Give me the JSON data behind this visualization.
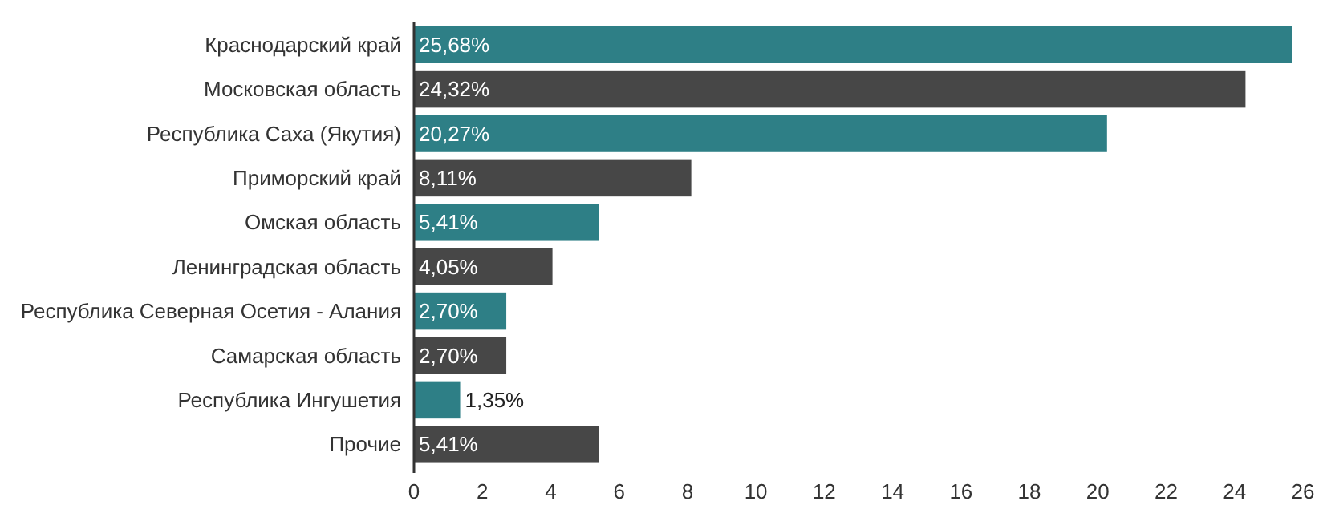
{
  "chart_data": {
    "type": "bar",
    "orientation": "horizontal",
    "categories": [
      "Краснодарский край",
      "Московская область",
      "Республика Саха (Якутия)",
      "Приморский край",
      "Омская область",
      "Ленинградская область",
      "Республика Северная Осетия - Алания",
      "Самарская область",
      "Республика Ингушетия",
      "Прочие"
    ],
    "values": [
      25.68,
      24.32,
      20.27,
      8.11,
      5.41,
      4.05,
      2.7,
      2.7,
      1.35,
      5.41
    ],
    "value_labels": [
      "25,68%",
      "24,32%",
      "20,27%",
      "8,11%",
      "5,41%",
      "4,05%",
      "2,70%",
      "2,70%",
      "1,35%",
      "5,41%"
    ],
    "colors": [
      "#2e7f86",
      "#474747",
      "#2e7f86",
      "#474747",
      "#2e7f86",
      "#474747",
      "#2e7f86",
      "#474747",
      "#2e7f86",
      "#474747"
    ],
    "xlim": [
      0,
      26
    ],
    "xticks": [
      0,
      2,
      4,
      6,
      8,
      10,
      12,
      14,
      16,
      18,
      20,
      22,
      24,
      26
    ],
    "grid": false
  }
}
